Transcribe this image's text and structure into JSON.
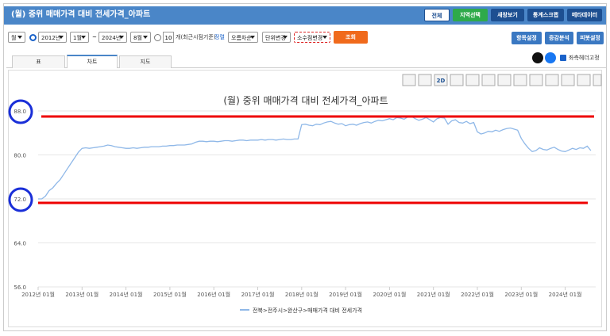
{
  "header": {
    "title": "(월) 중위 매매가격 대비 전세가격_아파트",
    "buttons": [
      "전체",
      "지역선택",
      "새창보기",
      "통계스크랩",
      "메타데이터"
    ]
  },
  "toolbar": {
    "period": "월",
    "start_year": "2012년",
    "start_month": "1월",
    "separator": "~",
    "end_year": "2024년",
    "end_month": "8월",
    "recent_count": "10",
    "recent_label": "개(최근시점기준)",
    "sort_label": "정렬",
    "sort": "오름차순",
    "unit": "단위변경",
    "decimal": "소수점변경",
    "search": "조회",
    "right_buttons": [
      "항목설정",
      "증감분석",
      "피봇설정"
    ]
  },
  "tabs": [
    "표",
    "차트",
    "지도"
  ],
  "fix_header": "좌측헤더고정",
  "chart_tools": {
    "mode": "2D"
  },
  "chart_data": {
    "type": "line",
    "title": "(월) 중위 매매가격 대비 전세가격_아파트",
    "categories": [
      "2012년 01월",
      null,
      null,
      null,
      null,
      null,
      null,
      null,
      null,
      null,
      null,
      null,
      "2013년 01월",
      null,
      null,
      null,
      null,
      null,
      null,
      null,
      null,
      null,
      null,
      null,
      "2014년 01월",
      null,
      null,
      null,
      null,
      null,
      null,
      null,
      null,
      null,
      null,
      null,
      "2015년 01월",
      null,
      null,
      null,
      null,
      null,
      null,
      null,
      null,
      null,
      null,
      null,
      "2016년 01월",
      null,
      null,
      null,
      null,
      null,
      null,
      null,
      null,
      null,
      null,
      null,
      "2017년 01월",
      null,
      null,
      null,
      null,
      null,
      null,
      null,
      null,
      null,
      null,
      null,
      "2018년 01월",
      null,
      null,
      null,
      null,
      null,
      null,
      null,
      null,
      null,
      null,
      null,
      "2019년 01월",
      null,
      null,
      null,
      null,
      null,
      null,
      null,
      null,
      null,
      null,
      null,
      "2020년 01월",
      null,
      null,
      null,
      null,
      null,
      null,
      null,
      null,
      null,
      null,
      null,
      "2021년 01월",
      null,
      null,
      null,
      null,
      null,
      null,
      null,
      null,
      null,
      null,
      null,
      "2022년 01월",
      null,
      null,
      null,
      null,
      null,
      null,
      null,
      null,
      null,
      null,
      null,
      "2023년 01월",
      null,
      null,
      null,
      null,
      null,
      null,
      null,
      null,
      null,
      null,
      null,
      "2024년 01월",
      null,
      null,
      null,
      null,
      null,
      null,
      null
    ],
    "series": [
      {
        "name": "전북>전주시>완산구>매매가격 대비 전세가격",
        "color": "#8fb8e8",
        "values": [
          72.0,
          72.0,
          72.5,
          73.5,
          74.0,
          74.8,
          75.5,
          76.5,
          77.5,
          78.5,
          79.5,
          80.5,
          81.2,
          81.3,
          81.2,
          81.3,
          81.4,
          81.5,
          81.6,
          81.8,
          81.7,
          81.5,
          81.4,
          81.3,
          81.2,
          81.2,
          81.3,
          81.2,
          81.3,
          81.4,
          81.4,
          81.5,
          81.5,
          81.5,
          81.6,
          81.6,
          81.7,
          81.7,
          81.8,
          81.8,
          81.8,
          81.9,
          82.0,
          82.3,
          82.5,
          82.5,
          82.4,
          82.5,
          82.5,
          82.4,
          82.5,
          82.6,
          82.6,
          82.5,
          82.6,
          82.7,
          82.7,
          82.6,
          82.7,
          82.7,
          82.7,
          82.8,
          82.7,
          82.8,
          82.8,
          82.7,
          82.8,
          82.9,
          82.8,
          82.8,
          82.9,
          82.9,
          85.5,
          85.6,
          85.4,
          85.3,
          85.6,
          85.5,
          85.8,
          86.0,
          86.1,
          85.8,
          85.6,
          85.7,
          85.3,
          85.5,
          85.6,
          85.4,
          85.7,
          85.9,
          86.0,
          85.8,
          86.1,
          86.3,
          86.2,
          86.4,
          86.6,
          86.4,
          86.8,
          86.7,
          86.5,
          86.9,
          87.0,
          86.6,
          86.3,
          86.5,
          86.8,
          86.4,
          86.0,
          86.6,
          86.8,
          86.7,
          85.6,
          86.2,
          86.4,
          85.9,
          85.8,
          86.1,
          85.7,
          85.9,
          84.2,
          83.8,
          84.0,
          84.3,
          84.2,
          84.5,
          84.3,
          84.6,
          84.8,
          84.9,
          84.7,
          84.5,
          83.0,
          82.0,
          81.2,
          80.6,
          80.8,
          81.3,
          81.0,
          80.9,
          81.2,
          81.4,
          81.0,
          80.7,
          80.6,
          80.9,
          81.2,
          81.0,
          81.3,
          81.2,
          81.6,
          80.8
        ]
      }
    ],
    "ylim": [
      56,
      88
    ],
    "yticks": [
      {
        "value": 56,
        "label": "56.0"
      },
      {
        "value": 64,
        "label": "64.0"
      },
      {
        "value": 72,
        "label": "72.0"
      },
      {
        "value": 80,
        "label": "80.0"
      },
      {
        "value": 88,
        "label": "88.0"
      }
    ],
    "grid": true
  }
}
